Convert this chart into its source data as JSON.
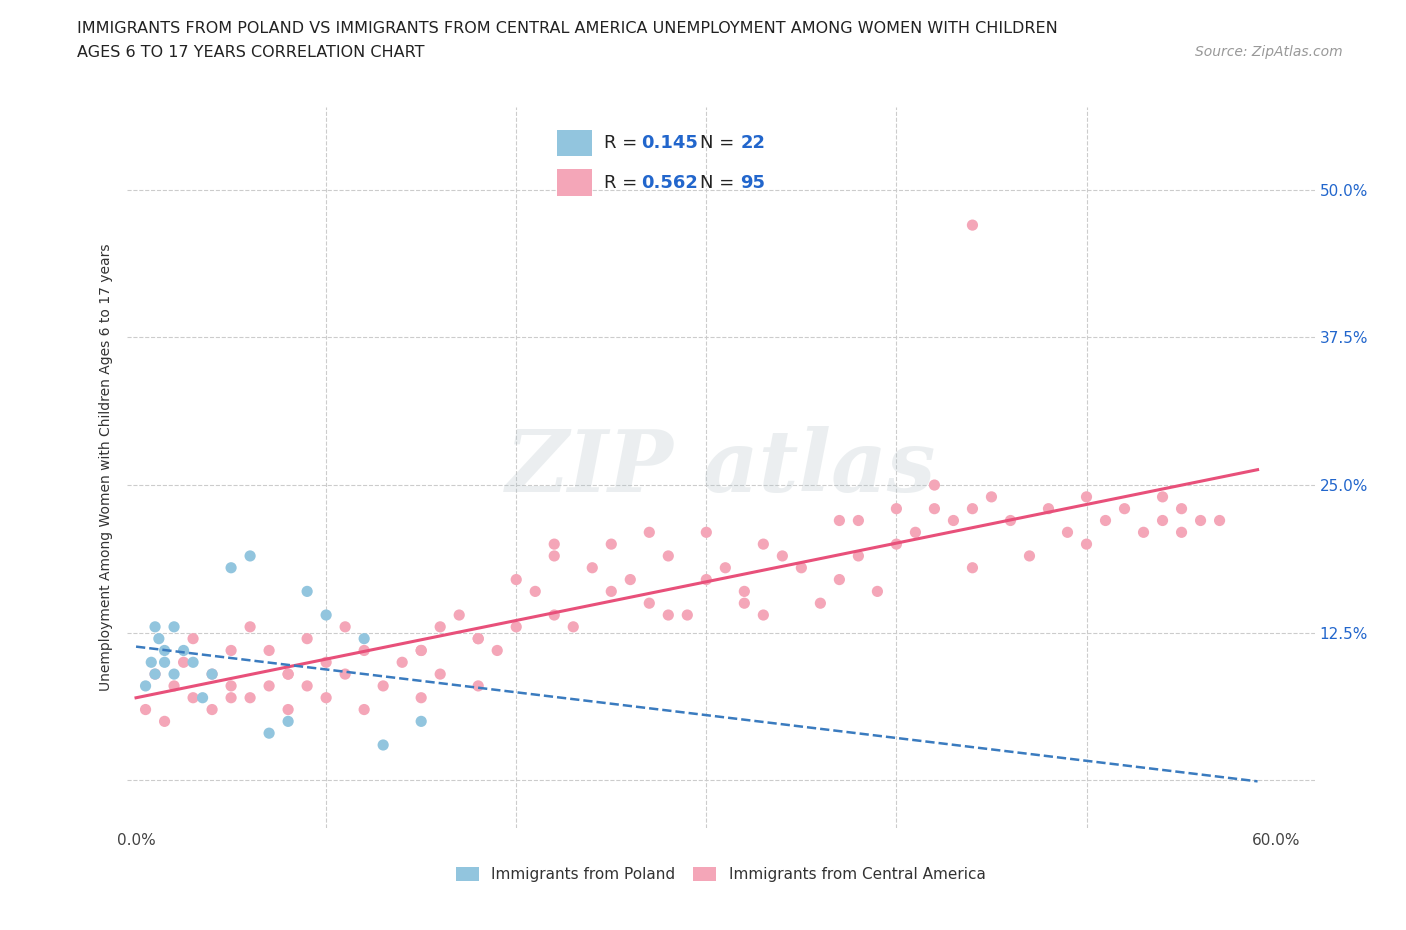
{
  "title_line1": "IMMIGRANTS FROM POLAND VS IMMIGRANTS FROM CENTRAL AMERICA UNEMPLOYMENT AMONG WOMEN WITH CHILDREN",
  "title_line2": "AGES 6 TO 17 YEARS CORRELATION CHART",
  "source": "Source: ZipAtlas.com",
  "ylabel": "Unemployment Among Women with Children Ages 6 to 17 years",
  "poland_R": 0.145,
  "poland_N": 22,
  "central_R": 0.562,
  "central_N": 95,
  "poland_color": "#92c5de",
  "central_color": "#f4a6b8",
  "poland_line_color": "#3a7bbf",
  "central_line_color": "#e8507a",
  "blue_text_color": "#2266cc",
  "ytick_positions": [
    0.0,
    0.125,
    0.25,
    0.375,
    0.5
  ],
  "ytick_labels": [
    "",
    "12.5%",
    "25.0%",
    "37.5%",
    "50.0%"
  ],
  "xlim": [
    -0.005,
    0.62
  ],
  "ylim": [
    -0.04,
    0.57
  ],
  "poland_x": [
    0.005,
    0.008,
    0.01,
    0.01,
    0.012,
    0.015,
    0.015,
    0.02,
    0.02,
    0.025,
    0.03,
    0.035,
    0.04,
    0.05,
    0.06,
    0.07,
    0.08,
    0.09,
    0.1,
    0.12,
    0.13,
    0.15
  ],
  "poland_y": [
    0.08,
    0.1,
    0.09,
    0.13,
    0.12,
    0.1,
    0.11,
    0.09,
    0.13,
    0.11,
    0.1,
    0.07,
    0.09,
    0.18,
    0.19,
    0.04,
    0.05,
    0.16,
    0.14,
    0.12,
    0.03,
    0.05
  ],
  "central_x": [
    0.005,
    0.01,
    0.015,
    0.02,
    0.025,
    0.03,
    0.03,
    0.04,
    0.04,
    0.05,
    0.05,
    0.06,
    0.06,
    0.07,
    0.07,
    0.08,
    0.08,
    0.09,
    0.09,
    0.1,
    0.1,
    0.11,
    0.11,
    0.12,
    0.12,
    0.13,
    0.14,
    0.15,
    0.15,
    0.16,
    0.16,
    0.17,
    0.18,
    0.18,
    0.19,
    0.2,
    0.2,
    0.21,
    0.22,
    0.22,
    0.23,
    0.24,
    0.25,
    0.25,
    0.26,
    0.27,
    0.27,
    0.28,
    0.29,
    0.3,
    0.3,
    0.31,
    0.32,
    0.33,
    0.33,
    0.34,
    0.35,
    0.36,
    0.37,
    0.37,
    0.38,
    0.39,
    0.4,
    0.4,
    0.41,
    0.42,
    0.43,
    0.44,
    0.44,
    0.45,
    0.46,
    0.47,
    0.48,
    0.49,
    0.5,
    0.5,
    0.51,
    0.52,
    0.53,
    0.54,
    0.54,
    0.55,
    0.55,
    0.56,
    0.57,
    0.38,
    0.42,
    0.28,
    0.32,
    0.22,
    0.18,
    0.15,
    0.08,
    0.05,
    0.44
  ],
  "central_y": [
    0.06,
    0.09,
    0.05,
    0.08,
    0.1,
    0.07,
    0.12,
    0.09,
    0.06,
    0.11,
    0.08,
    0.07,
    0.13,
    0.08,
    0.11,
    0.09,
    0.06,
    0.12,
    0.08,
    0.1,
    0.07,
    0.13,
    0.09,
    0.11,
    0.06,
    0.08,
    0.1,
    0.11,
    0.07,
    0.13,
    0.09,
    0.14,
    0.12,
    0.08,
    0.11,
    0.13,
    0.17,
    0.16,
    0.14,
    0.19,
    0.13,
    0.18,
    0.2,
    0.16,
    0.17,
    0.21,
    0.15,
    0.19,
    0.14,
    0.21,
    0.17,
    0.18,
    0.16,
    0.2,
    0.14,
    0.19,
    0.18,
    0.15,
    0.17,
    0.22,
    0.19,
    0.16,
    0.2,
    0.23,
    0.21,
    0.25,
    0.22,
    0.18,
    0.23,
    0.24,
    0.22,
    0.19,
    0.23,
    0.21,
    0.24,
    0.2,
    0.22,
    0.23,
    0.21,
    0.24,
    0.22,
    0.23,
    0.21,
    0.22,
    0.22,
    0.22,
    0.23,
    0.14,
    0.15,
    0.2,
    0.12,
    0.11,
    0.09,
    0.07,
    0.47
  ]
}
